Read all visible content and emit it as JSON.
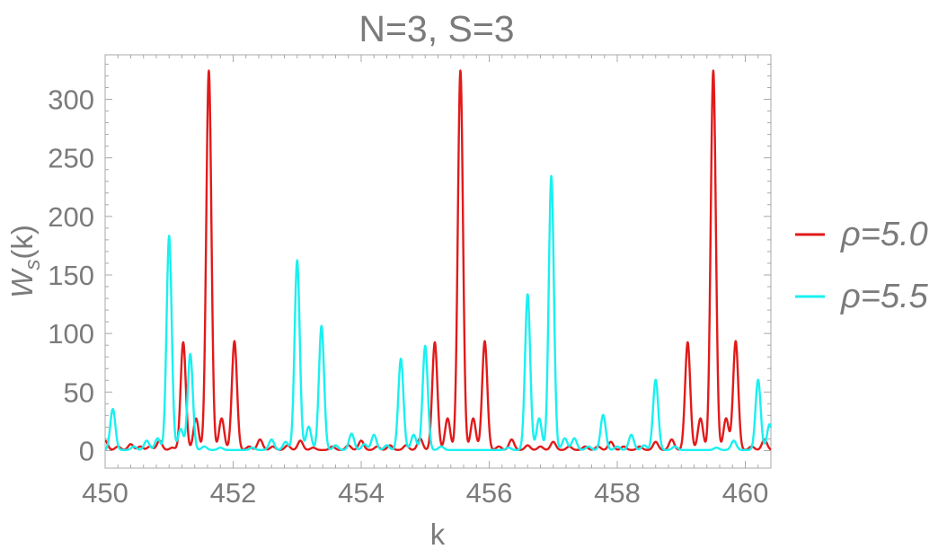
{
  "chart_data": {
    "type": "line",
    "title": "N=3, S=3",
    "xlabel": "k",
    "ylabel_main": "W",
    "ylabel_sub": "s",
    "ylabel_tail": "(k)",
    "xlim": [
      450,
      460.4
    ],
    "ylim": [
      -15,
      338
    ],
    "x_ticks": [
      450,
      452,
      454,
      456,
      458,
      460
    ],
    "x_tick_labels": [
      "450",
      "452",
      "454",
      "456",
      "458",
      "460"
    ],
    "y_ticks": [
      0,
      50,
      100,
      150,
      200,
      250,
      300
    ],
    "y_tick_labels": [
      "0",
      "50",
      "100",
      "150",
      "200",
      "250",
      "300"
    ],
    "grid": false,
    "legend_position": "right",
    "series": [
      {
        "name": "ρ=5.0",
        "color": "#e21a1a",
        "baseline": 0.5,
        "peaks": [
          [
            450.0,
            8
          ],
          [
            450.2,
            3
          ],
          [
            450.4,
            5
          ],
          [
            450.55,
            3
          ],
          [
            450.7,
            3
          ],
          [
            450.85,
            8
          ],
          [
            451.05,
            2
          ],
          [
            451.22,
            92
          ],
          [
            451.42,
            27
          ],
          [
            451.62,
            324
          ],
          [
            451.82,
            27
          ],
          [
            452.02,
            93
          ],
          [
            452.25,
            3
          ],
          [
            452.42,
            9
          ],
          [
            452.62,
            3
          ],
          [
            452.85,
            4
          ],
          [
            453.05,
            8
          ],
          [
            453.25,
            2
          ],
          [
            453.55,
            3
          ],
          [
            453.8,
            4
          ],
          [
            454.0,
            8
          ],
          [
            454.25,
            3
          ],
          [
            454.45,
            4
          ],
          [
            454.7,
            4
          ],
          [
            454.92,
            10
          ],
          [
            455.15,
            92
          ],
          [
            455.35,
            27
          ],
          [
            455.55,
            324
          ],
          [
            455.75,
            27
          ],
          [
            455.93,
            93
          ],
          [
            456.15,
            3
          ],
          [
            456.35,
            9
          ],
          [
            456.6,
            4
          ],
          [
            456.8,
            3
          ],
          [
            457.0,
            7
          ],
          [
            457.25,
            3
          ],
          [
            457.5,
            3
          ],
          [
            457.7,
            3
          ],
          [
            457.9,
            7
          ],
          [
            458.1,
            3
          ],
          [
            458.35,
            3
          ],
          [
            458.6,
            7
          ],
          [
            458.85,
            9
          ],
          [
            459.1,
            92
          ],
          [
            459.3,
            27
          ],
          [
            459.5,
            324
          ],
          [
            459.7,
            27
          ],
          [
            459.85,
            93
          ],
          [
            460.1,
            3
          ],
          [
            460.3,
            9
          ]
        ]
      },
      {
        "name": "ρ=5.5",
        "color": "#19f0f0",
        "baseline": 0.5,
        "peaks": [
          [
            450.12,
            35
          ],
          [
            450.45,
            3
          ],
          [
            450.65,
            8
          ],
          [
            450.82,
            10
          ],
          [
            451.0,
            183
          ],
          [
            451.18,
            18
          ],
          [
            451.33,
            82
          ],
          [
            451.55,
            3
          ],
          [
            451.8,
            2
          ],
          [
            452.3,
            2
          ],
          [
            452.6,
            9
          ],
          [
            452.82,
            7
          ],
          [
            453.0,
            162
          ],
          [
            453.18,
            20
          ],
          [
            453.38,
            106
          ],
          [
            453.6,
            4
          ],
          [
            453.85,
            14
          ],
          [
            454.05,
            5
          ],
          [
            454.2,
            13
          ],
          [
            454.4,
            4
          ],
          [
            454.62,
            78
          ],
          [
            454.82,
            13
          ],
          [
            455.0,
            89
          ],
          [
            455.25,
            3
          ],
          [
            456.3,
            2
          ],
          [
            456.6,
            133
          ],
          [
            456.78,
            27
          ],
          [
            456.97,
            234
          ],
          [
            457.18,
            10
          ],
          [
            457.33,
            10
          ],
          [
            457.55,
            3
          ],
          [
            457.78,
            30
          ],
          [
            458.0,
            3
          ],
          [
            458.22,
            13
          ],
          [
            458.42,
            4
          ],
          [
            458.6,
            60
          ],
          [
            458.9,
            3
          ],
          [
            459.55,
            2
          ],
          [
            459.82,
            8
          ],
          [
            460.2,
            60
          ],
          [
            460.38,
            22
          ]
        ]
      }
    ]
  }
}
